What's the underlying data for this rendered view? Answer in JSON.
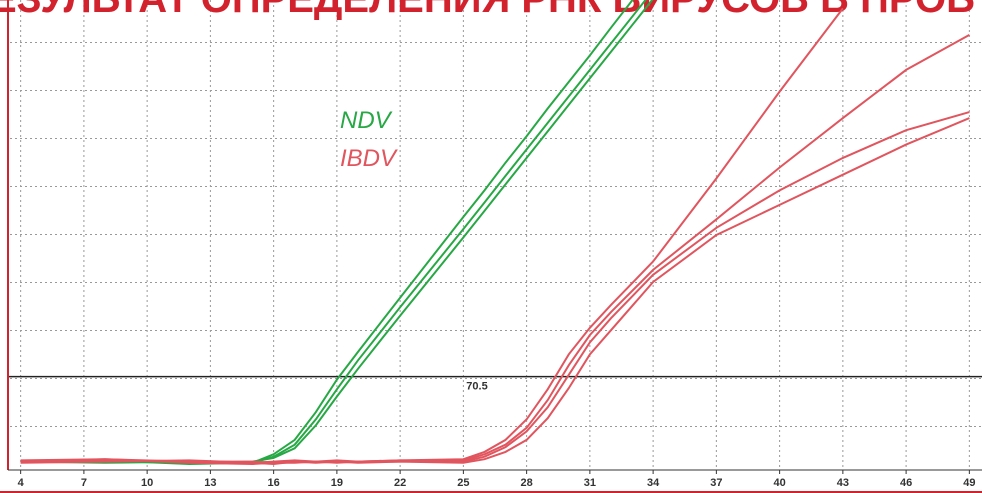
{
  "chart_data": {
    "type": "line",
    "title": "ЕЗУЛЬТАТ ОПРЕДЕЛЕНИЯ РНК ВИРУСОВ В ПРОБ",
    "x": [
      4,
      8,
      12,
      15,
      16,
      17,
      18,
      19,
      20,
      22,
      25,
      26,
      27,
      28,
      29,
      30,
      31,
      32,
      34,
      37,
      40,
      43,
      46,
      49
    ],
    "xlim": [
      3.4,
      49.6
    ],
    "xticks": [
      4,
      7,
      10,
      13,
      16,
      19,
      22,
      25,
      28,
      31,
      34,
      37,
      40,
      43,
      46,
      49
    ],
    "ylim": [
      -7,
      383
    ],
    "threshold": 70.5,
    "grid": true,
    "series": [
      {
        "name": "NDV",
        "color": "#27a845",
        "values": [
          0,
          1,
          -2,
          -1,
          6,
          18,
          41,
          68,
          91,
          136,
          203,
          225,
          248,
          270,
          293,
          315,
          337,
          360,
          405,
          null,
          null,
          null,
          null,
          null
        ]
      },
      {
        "color": "#27a845",
        "values": [
          0,
          -1,
          0,
          -1,
          4,
          14,
          35,
          60,
          84,
          128,
          193,
          215,
          237,
          259,
          281,
          303,
          325,
          347,
          391,
          null,
          null,
          null,
          null,
          null
        ]
      },
      {
        "color": "#27a845",
        "values": [
          0,
          1,
          -1,
          0,
          3,
          11,
          30,
          54,
          77,
          121,
          186,
          208,
          230,
          252,
          274,
          296,
          318,
          340,
          384,
          null,
          null,
          null,
          null,
          null
        ]
      },
      {
        "name": "IBDV",
        "color": "#e0555e",
        "values": [
          1,
          2,
          -1,
          -2,
          -1,
          0,
          0,
          -1,
          0,
          1,
          2,
          8,
          18,
          35,
          60,
          89,
          111,
          130,
          166,
          235,
          307,
          376,
          null,
          null
        ]
      },
      {
        "color": "#e0555e",
        "values": [
          0,
          1,
          0,
          -1,
          0,
          1,
          0,
          0,
          -1,
          0,
          1,
          6,
          14,
          28,
          51,
          80,
          105,
          124,
          159,
          201,
          244,
          285,
          325,
          354
        ]
      },
      {
        "color": "#e0555e",
        "values": [
          -1,
          0,
          1,
          -1,
          -2,
          0,
          -1,
          0,
          0,
          1,
          0,
          4,
          12,
          25,
          45,
          72,
          99,
          119,
          155,
          194,
          225,
          252,
          275,
          290
        ]
      },
      {
        "color": "#e0555e",
        "values": [
          0,
          2,
          0,
          0,
          -1,
          -1,
          0,
          1,
          0,
          0,
          -1,
          2,
          8,
          18,
          36,
          61,
          89,
          109,
          149,
          188,
          213,
          238,
          263,
          285
        ]
      }
    ]
  }
}
